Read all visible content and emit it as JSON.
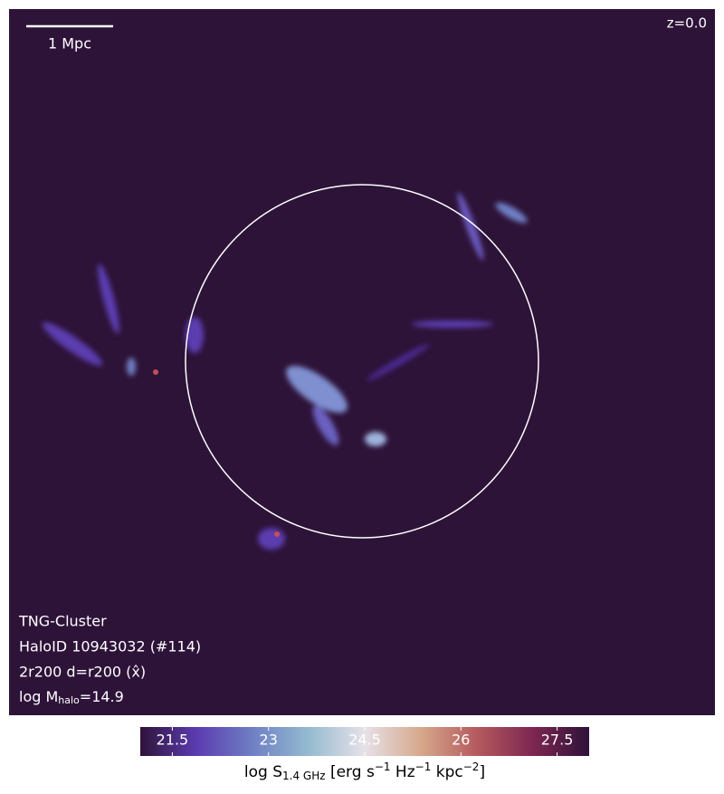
{
  "chart_data": {
    "type": "image",
    "scale_bar_label": "1 Mpc",
    "redshift_label": "z=0.0",
    "annotations": [
      "TNG-Cluster",
      "HaloID 10943032 (#114)",
      "2r200 d=r200 (x̂)"
    ],
    "mass_label_parts": [
      "log M",
      "halo",
      "=14.9"
    ],
    "colorbar": {
      "lim": [
        21.0,
        28.0
      ],
      "ticks": [
        21.5,
        23.0,
        24.5,
        26.0,
        27.5
      ],
      "colors": [
        "#2e1339",
        "#5b3cb0",
        "#6f7fc4",
        "#94bbd0",
        "#e6e1e8",
        "#d7a88b",
        "#b45a5e",
        "#7d2651",
        "#2e1339"
      ],
      "label_parts": [
        "log S",
        "1.4 GHz",
        " [erg s",
        "−1",
        " Hz",
        "−1",
        " kpc",
        "−2",
        "]"
      ]
    }
  }
}
